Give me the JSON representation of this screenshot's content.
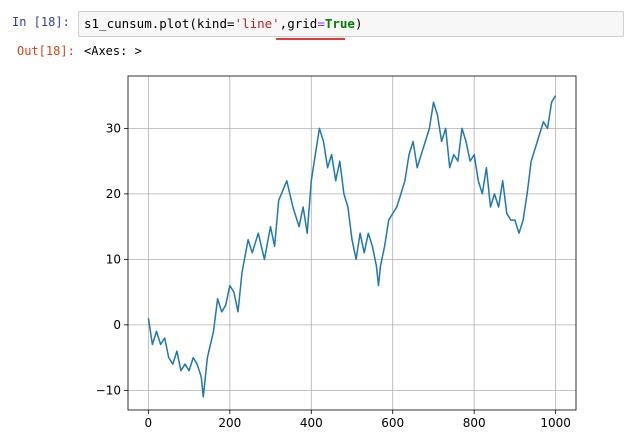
{
  "input_cell": {
    "prompt": "In  [18]:",
    "code": {
      "prefix": "s1_cunsum.plot(kind=",
      "kind_value": "'line'",
      "comma": ",",
      "grid_arg": "grid",
      "equals": "=",
      "grid_value": "True",
      "suffix": ")"
    }
  },
  "output_cell": {
    "prompt": "Out[18]:",
    "text": "<Axes: >"
  },
  "colors": {
    "line": "#1f77b4",
    "grid": "#b0b0b0",
    "prompt_in": "#303f9f",
    "prompt_out": "#d84315",
    "squiggle": "#e53935"
  },
  "chart_data": {
    "type": "line",
    "title": "",
    "xlabel": "",
    "ylabel": "",
    "grid": true,
    "xlim": [
      -50,
      1050
    ],
    "ylim": [
      -13,
      38
    ],
    "xticks": [
      0,
      200,
      400,
      600,
      800,
      1000
    ],
    "yticks": [
      -10,
      0,
      10,
      20,
      30
    ],
    "xtick_labels": [
      "0",
      "200",
      "400",
      "600",
      "800",
      "1000"
    ],
    "ytick_labels": [
      "−10",
      "0",
      "10",
      "20",
      "30"
    ],
    "series": [
      {
        "points": [
          [
            0,
            1
          ],
          [
            10,
            -3
          ],
          [
            20,
            -1
          ],
          [
            30,
            -3
          ],
          [
            40,
            -2
          ],
          [
            50,
            -5
          ],
          [
            60,
            -6
          ],
          [
            70,
            -4
          ],
          [
            80,
            -7
          ],
          [
            90,
            -6
          ],
          [
            100,
            -7
          ],
          [
            110,
            -5
          ],
          [
            120,
            -6
          ],
          [
            130,
            -8
          ],
          [
            135,
            -11
          ],
          [
            145,
            -5
          ],
          [
            160,
            -1
          ],
          [
            170,
            4
          ],
          [
            180,
            2
          ],
          [
            190,
            3
          ],
          [
            200,
            6
          ],
          [
            210,
            5
          ],
          [
            220,
            2
          ],
          [
            230,
            8
          ],
          [
            245,
            13
          ],
          [
            255,
            11
          ],
          [
            270,
            14
          ],
          [
            285,
            10
          ],
          [
            300,
            15
          ],
          [
            310,
            12
          ],
          [
            320,
            19
          ],
          [
            340,
            22
          ],
          [
            355,
            18
          ],
          [
            370,
            15
          ],
          [
            380,
            18
          ],
          [
            390,
            14
          ],
          [
            400,
            22
          ],
          [
            410,
            26
          ],
          [
            420,
            30
          ],
          [
            430,
            28
          ],
          [
            440,
            24
          ],
          [
            450,
            26
          ],
          [
            460,
            22
          ],
          [
            470,
            25
          ],
          [
            480,
            20
          ],
          [
            490,
            18
          ],
          [
            500,
            13
          ],
          [
            510,
            10
          ],
          [
            520,
            14
          ],
          [
            530,
            11
          ],
          [
            540,
            14
          ],
          [
            550,
            12
          ],
          [
            560,
            9
          ],
          [
            565,
            6
          ],
          [
            570,
            9
          ],
          [
            580,
            12
          ],
          [
            590,
            16
          ],
          [
            600,
            17
          ],
          [
            610,
            18
          ],
          [
            620,
            20
          ],
          [
            630,
            22
          ],
          [
            640,
            26
          ],
          [
            650,
            28
          ],
          [
            660,
            24
          ],
          [
            670,
            26
          ],
          [
            680,
            28
          ],
          [
            690,
            30
          ],
          [
            700,
            34
          ],
          [
            710,
            32
          ],
          [
            720,
            28
          ],
          [
            730,
            30
          ],
          [
            740,
            24
          ],
          [
            750,
            26
          ],
          [
            760,
            25
          ],
          [
            770,
            30
          ],
          [
            780,
            28
          ],
          [
            790,
            25
          ],
          [
            800,
            26
          ],
          [
            810,
            22
          ],
          [
            820,
            20
          ],
          [
            830,
            24
          ],
          [
            840,
            18
          ],
          [
            850,
            20
          ],
          [
            860,
            18
          ],
          [
            870,
            22
          ],
          [
            880,
            17
          ],
          [
            890,
            16
          ],
          [
            900,
            16
          ],
          [
            910,
            14
          ],
          [
            920,
            16
          ],
          [
            930,
            20
          ],
          [
            940,
            25
          ],
          [
            950,
            27
          ],
          [
            960,
            29
          ],
          [
            970,
            31
          ],
          [
            980,
            30
          ],
          [
            990,
            34
          ],
          [
            1000,
            35
          ]
        ]
      }
    ]
  }
}
